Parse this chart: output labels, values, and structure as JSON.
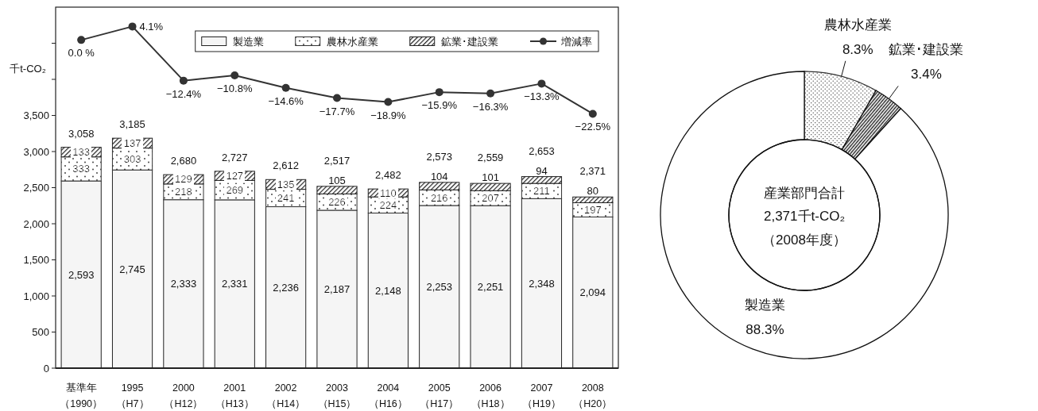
{
  "chart_data": [
    {
      "type": "bar",
      "stacked": true,
      "ylabel": "千t-CO₂",
      "categories": [
        "基準年（1990）",
        "1995\n（H7）",
        "2000\n（H12）",
        "2001\n（H13）",
        "2002\n（H14）",
        "2003\n（H15）",
        "2004\n（H16）",
        "2005\n（H17）",
        "2006\n（H18）",
        "2007\n（H19）",
        "2008\n（H20）"
      ],
      "series": [
        {
          "name": "製造業",
          "color": "#f5f5f5",
          "values": [
            2593,
            2745,
            2333,
            2331,
            2236,
            2187,
            2148,
            2253,
            2251,
            2348,
            2094
          ],
          "value_labels": [
            "2,593",
            "2,745",
            "2,333",
            "2,331",
            "2,236",
            "2,187",
            "2,148",
            "2,253",
            "2,251",
            "2,348",
            "2,094"
          ]
        },
        {
          "name": "農林水産業",
          "color": "#333333",
          "values": [
            333,
            303,
            218,
            269,
            241,
            226,
            224,
            216,
            207,
            211,
            197
          ],
          "value_labels": [
            "333",
            "303",
            "218",
            "269",
            "241",
            "226",
            "224",
            "216",
            "207",
            "211",
            "197"
          ]
        },
        {
          "name": "鉱業･建設業",
          "color": "#222222",
          "values": [
            133,
            137,
            129,
            127,
            135,
            105,
            110,
            104,
            101,
            94,
            80
          ],
          "value_labels": [
            "133",
            "137",
            "129",
            "127",
            "135",
            "105",
            "110",
            "104",
            "101",
            "94",
            "80"
          ]
        },
        {
          "name": "増減率",
          "type": "line",
          "axis": "y2",
          "color": "#333333",
          "values": [
            0.0,
            4.1,
            -12.4,
            -10.8,
            -14.6,
            -17.7,
            -18.9,
            -15.9,
            -16.3,
            -13.3,
            -22.5
          ],
          "value_labels": [
            "0.0 %",
            "4.1%",
            "−12.4%",
            "−10.8%",
            "−14.6%",
            "−17.7%",
            "−18.9%",
            "−15.9%",
            "−16.3%",
            "−13.3%",
            "−22.5%"
          ]
        }
      ],
      "totals": [
        "3,058",
        "3,185",
        "2,680",
        "2,727",
        "2,612",
        "2,517",
        "2,482",
        "2,573",
        "2,559",
        "2,653",
        "2,371"
      ],
      "ylim": [
        0,
        5000
      ],
      "yticks": [
        0,
        500,
        {
          "value": 1000,
          "label": "1,000"
        },
        {
          "value": 1500,
          "label": "1,500"
        },
        {
          "value": 2000,
          "label": "2,000"
        },
        {
          "value": 2500,
          "label": "2,500"
        },
        {
          "value": 3000,
          "label": "3,000"
        },
        {
          "value": 3500,
          "label": "3,500"
        },
        {
          "value": 4000,
          "label": null
        },
        {
          "value": 4500,
          "label": null
        }
      ],
      "y2lim": [
        -100,
        10
      ],
      "marker": "circle",
      "legend": "top right"
    },
    {
      "type": "donut",
      "categories": [
        "農林水産業",
        "鉱業･建設業",
        "製造業"
      ],
      "values": [
        8.3,
        3.4,
        88.3
      ],
      "colors": [
        "#333333",
        "#111111",
        "#ffffff"
      ],
      "value_labels": [
        "8.3%",
        "3.4%",
        "88.3%"
      ],
      "annotations": [
        "産業部門合計\n2,371千t-CO₂\n（2008年度）"
      ]
    }
  ]
}
